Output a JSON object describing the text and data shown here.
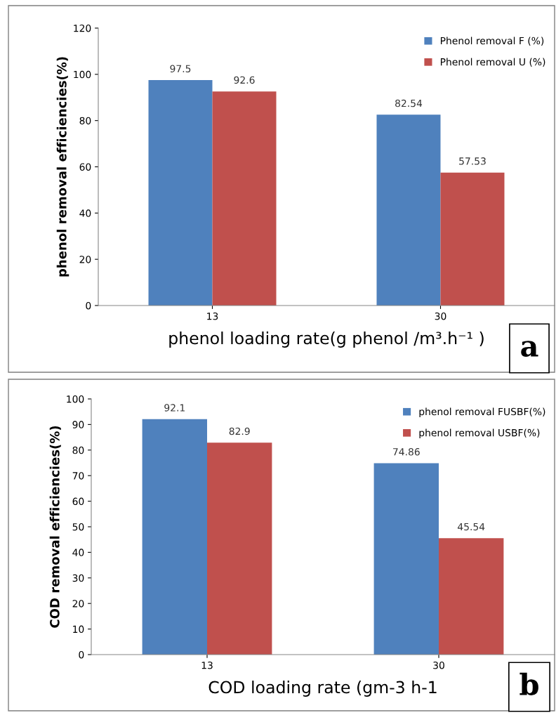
{
  "chart_data": [
    {
      "type": "bar",
      "categories": [
        "13",
        "30"
      ],
      "xlabel": "phenol loading rate(g phenol /m³.h⁻¹ )",
      "ylabel": "phenol removal efficiencies(%)",
      "ylim": [
        0,
        120
      ],
      "yticks": [
        0,
        20,
        40,
        60,
        80,
        100,
        120
      ],
      "data_labels": true,
      "legend": "top right",
      "grid": false,
      "annotations": [
        "a"
      ],
      "series": [
        {
          "name": "Phenol removal F (%)",
          "color": "#4f81bd",
          "values": [
            97.5,
            82.54
          ]
        },
        {
          "name": "Phenol removal U (%)",
          "color": "#c0504d",
          "values": [
            92.6,
            57.53
          ]
        }
      ]
    },
    {
      "type": "bar",
      "categories": [
        "13",
        "30"
      ],
      "xlabel": "COD loading rate (gm-3 h-1",
      "ylabel": "COD removal efficiencies(%)",
      "ylim": [
        0,
        100
      ],
      "yticks": [
        0,
        10,
        20,
        30,
        40,
        50,
        60,
        70,
        80,
        90,
        100
      ],
      "data_labels": true,
      "legend": "top right",
      "grid": false,
      "annotations": [
        "b"
      ],
      "series": [
        {
          "name": "phenol removal FUSBF(%)",
          "color": "#4f81bd",
          "values": [
            92.1,
            74.86
          ]
        },
        {
          "name": "phenol removal USBF(%)",
          "color": "#c0504d",
          "values": [
            82.9,
            45.54
          ]
        }
      ]
    }
  ]
}
